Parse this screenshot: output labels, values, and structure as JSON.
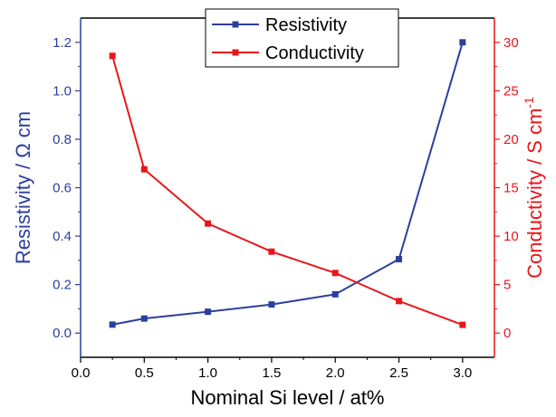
{
  "chart_data": {
    "type": "line",
    "xlabel": "Nominal Si level / at%",
    "ylabel_left": "Resistivity / Ω cm",
    "ylabel_right_main": "Conductivity / S cm",
    "ylabel_right_sup": "-1",
    "xlim": [
      0.0,
      3.25
    ],
    "ylim_left": [
      -0.1,
      1.3
    ],
    "ylim_right": [
      -2.5,
      32.5
    ],
    "x_ticks": [
      "0.0",
      "0.5",
      "1.0",
      "1.5",
      "2.0",
      "2.5",
      "3.0"
    ],
    "y_left_ticks": [
      "0.0",
      "0.2",
      "0.4",
      "0.6",
      "0.8",
      "1.0",
      "1.2"
    ],
    "y_right_ticks": [
      "0",
      "5",
      "10",
      "15",
      "20",
      "25",
      "30"
    ],
    "grid": false,
    "legend_position": "top-center",
    "series": [
      {
        "name": "Resistivity",
        "axis": "left",
        "color": "#2b3f9e",
        "x": [
          0.25,
          0.5,
          1.0,
          1.5,
          2.0,
          2.5,
          3.0
        ],
        "y": [
          0.035,
          0.06,
          0.088,
          0.118,
          0.16,
          0.305,
          1.2
        ]
      },
      {
        "name": "Conductivity",
        "axis": "right",
        "color": "#e8161b",
        "x": [
          0.25,
          0.5,
          1.0,
          1.5,
          2.0,
          2.5,
          3.0
        ],
        "y": [
          28.6,
          16.9,
          11.3,
          8.4,
          6.2,
          3.3,
          0.85
        ]
      }
    ]
  }
}
